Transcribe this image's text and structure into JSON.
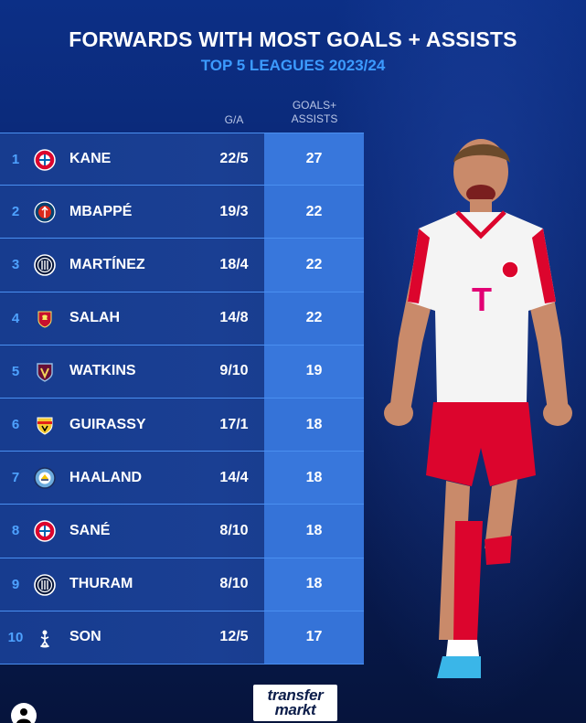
{
  "title": "FORWARDS WITH MOST GOALS + ASSISTS",
  "subtitle": "TOP 5 LEAGUES 2023/24",
  "columns": {
    "ga": "G/A",
    "goals_assists": [
      "GOALS+",
      "ASSISTS"
    ]
  },
  "rows": [
    {
      "rank": "1",
      "name": "KANE",
      "ga": "22/5",
      "total": "27",
      "club_icon": "bayern-crest-icon"
    },
    {
      "rank": "2",
      "name": "MBAPPÉ",
      "ga": "19/3",
      "total": "22",
      "club_icon": "psg-crest-icon"
    },
    {
      "rank": "3",
      "name": "MARTÍNEZ",
      "ga": "18/4",
      "total": "22",
      "club_icon": "inter-crest-icon"
    },
    {
      "rank": "4",
      "name": "SALAH",
      "ga": "14/8",
      "total": "22",
      "club_icon": "liverpool-crest-icon"
    },
    {
      "rank": "5",
      "name": "WATKINS",
      "ga": "9/10",
      "total": "19",
      "club_icon": "aston-villa-crest-icon"
    },
    {
      "rank": "6",
      "name": "GUIRASSY",
      "ga": "17/1",
      "total": "18",
      "club_icon": "stuttgart-crest-icon"
    },
    {
      "rank": "7",
      "name": "HAALAND",
      "ga": "14/4",
      "total": "18",
      "club_icon": "man-city-crest-icon"
    },
    {
      "rank": "8",
      "name": "SANÉ",
      "ga": "8/10",
      "total": "18",
      "club_icon": "bayern-crest-icon"
    },
    {
      "rank": "9",
      "name": "THURAM",
      "ga": "8/10",
      "total": "18",
      "club_icon": "inter-crest-icon"
    },
    {
      "rank": "10",
      "name": "SON",
      "ga": "12/5",
      "total": "17",
      "club_icon": "tottenham-crest-icon"
    }
  ],
  "logo": {
    "line1": "transfer",
    "line2": "markt"
  },
  "colors": {
    "background": "#0a2670",
    "accent_blue": "#3c9bff",
    "total_cell": "#3573d8",
    "row_bg": "#1a3f93"
  }
}
